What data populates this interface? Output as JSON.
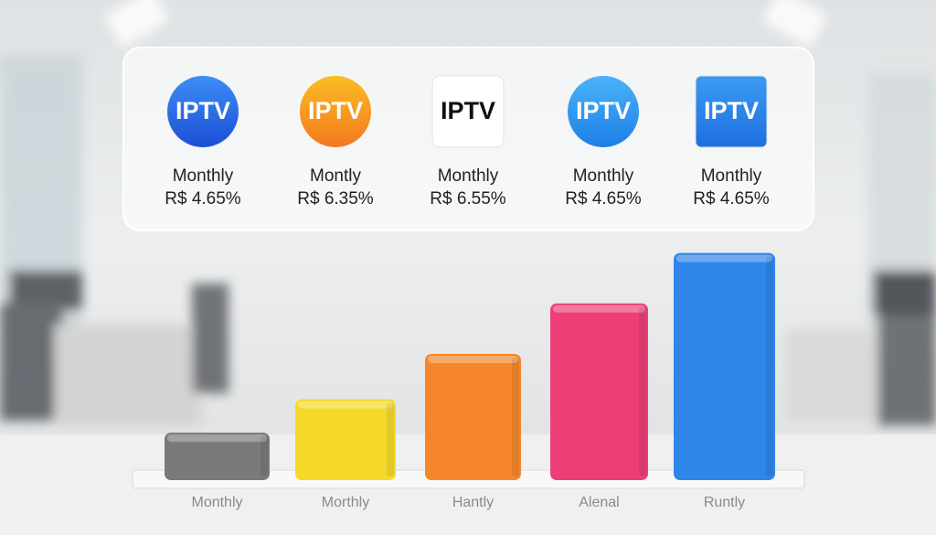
{
  "cards": [
    {
      "icon": "IPTV",
      "label": "Monthly",
      "price": "R$ 4.65%"
    },
    {
      "icon": "IPTV",
      "label": "Montly",
      "price": "R$ 6.35%"
    },
    {
      "icon": "IPTV",
      "label": "Monthly",
      "price": "R$ 6.55%"
    },
    {
      "icon": "IPTV",
      "label": "Monthly",
      "price": "R$ 4.65%"
    },
    {
      "icon": "IPTV",
      "label": "Monthly",
      "price": "R$ 4.65%"
    }
  ],
  "chart_data": {
    "type": "bar",
    "categories": [
      "Monthly",
      "Morthly",
      "Hantly",
      "Alenal",
      "Runtly"
    ],
    "values": [
      9.4,
      16,
      25,
      35,
      45
    ],
    "colors": [
      "#7a7a7a",
      "#f5d92a",
      "#f5872a",
      "#ec3f76",
      "#2f86ea"
    ],
    "ylim": [
      0,
      50
    ]
  }
}
